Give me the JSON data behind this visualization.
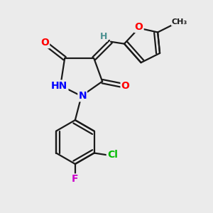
{
  "bg_color": "#ebebeb",
  "bond_color": "#1a1a1a",
  "atom_colors": {
    "O": "#ff0000",
    "N": "#0000ff",
    "Cl": "#00bb00",
    "F": "#cc00cc",
    "H": "#4a9090",
    "C": "#1a1a1a"
  },
  "font_size_atom": 10,
  "font_size_small": 9,
  "line_width": 1.6,
  "lw_double_inner": 1.4
}
